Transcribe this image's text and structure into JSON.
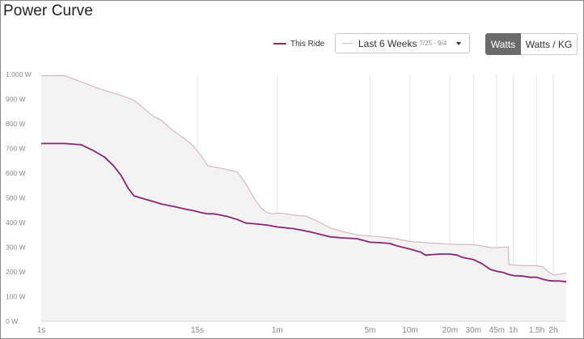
{
  "title": "Power Curve",
  "legend": {
    "ride_label": "This Ride"
  },
  "period_select": {
    "label": "Last 6 Weeks",
    "range": "7/25 - 9/4"
  },
  "units": {
    "watts": "Watts",
    "watts_per_kg": "Watts / KG",
    "selected": "Watts"
  },
  "colors": {
    "ride": "#8b2771",
    "period_line": "#d8b6c9",
    "period_fill": "#f3f3f3",
    "grid": "#e6e6e6",
    "axis_text": "#888888"
  },
  "chart_data": {
    "type": "line",
    "title": "Power Curve",
    "xlabel": "",
    "ylabel": "",
    "x_scale": "log",
    "x_unit": "seconds",
    "xlim": [
      1,
      9000
    ],
    "ylim": [
      0,
      1000
    ],
    "y_ticks": [
      {
        "value": 0,
        "label": "0 W"
      },
      {
        "value": 100,
        "label": "100 W"
      },
      {
        "value": 200,
        "label": "200 W"
      },
      {
        "value": 300,
        "label": "300 W"
      },
      {
        "value": 400,
        "label": "400 W"
      },
      {
        "value": 500,
        "label": "500 W"
      },
      {
        "value": 600,
        "label": "600 W"
      },
      {
        "value": 700,
        "label": "700 W"
      },
      {
        "value": 800,
        "label": "800 W"
      },
      {
        "value": 900,
        "label": "900 W"
      },
      {
        "value": 1000,
        "label": "1,000 W"
      }
    ],
    "x_ticks": [
      {
        "value": 1,
        "label": "1s"
      },
      {
        "value": 15,
        "label": "15s"
      },
      {
        "value": 60,
        "label": "1m"
      },
      {
        "value": 300,
        "label": "5m"
      },
      {
        "value": 600,
        "label": "10m"
      },
      {
        "value": 1200,
        "label": "20m"
      },
      {
        "value": 1800,
        "label": "30m"
      },
      {
        "value": 2700,
        "label": "45m"
      },
      {
        "value": 3600,
        "label": "1h"
      },
      {
        "value": 5400,
        "label": "1.5h"
      },
      {
        "value": 7200,
        "label": "2h"
      }
    ],
    "series": [
      {
        "name": "Last 6 Weeks",
        "style": "area",
        "points": [
          [
            1,
            995
          ],
          [
            1.5,
            995
          ],
          [
            2,
            970
          ],
          [
            2.5,
            950
          ],
          [
            3,
            935
          ],
          [
            4,
            915
          ],
          [
            5,
            895
          ],
          [
            6,
            860
          ],
          [
            7,
            830
          ],
          [
            8,
            815
          ],
          [
            9,
            790
          ],
          [
            10,
            770
          ],
          [
            12,
            740
          ],
          [
            14,
            710
          ],
          [
            16,
            670
          ],
          [
            18,
            630
          ],
          [
            20,
            625
          ],
          [
            25,
            615
          ],
          [
            30,
            605
          ],
          [
            35,
            555
          ],
          [
            40,
            500
          ],
          [
            45,
            460
          ],
          [
            50,
            440
          ],
          [
            55,
            435
          ],
          [
            60,
            438
          ],
          [
            70,
            435
          ],
          [
            80,
            430
          ],
          [
            100,
            425
          ],
          [
            120,
            405
          ],
          [
            150,
            378
          ],
          [
            180,
            365
          ],
          [
            240,
            350
          ],
          [
            300,
            345
          ],
          [
            360,
            342
          ],
          [
            420,
            338
          ],
          [
            480,
            333
          ],
          [
            600,
            323
          ],
          [
            720,
            320
          ],
          [
            900,
            316
          ],
          [
            1200,
            312
          ],
          [
            1500,
            311
          ],
          [
            1800,
            310
          ],
          [
            2100,
            305
          ],
          [
            2400,
            298
          ],
          [
            2700,
            298
          ],
          [
            3000,
            300
          ],
          [
            3300,
            300
          ],
          [
            3330,
            230
          ],
          [
            3600,
            228
          ],
          [
            4200,
            225
          ],
          [
            5400,
            225
          ],
          [
            6000,
            220
          ],
          [
            6600,
            200
          ],
          [
            7200,
            188
          ],
          [
            8000,
            190
          ],
          [
            9000,
            195
          ]
        ]
      },
      {
        "name": "This Ride",
        "style": "line",
        "points": [
          [
            1,
            720
          ],
          [
            1.5,
            720
          ],
          [
            2,
            715
          ],
          [
            2.5,
            690
          ],
          [
            3,
            665
          ],
          [
            3.5,
            630
          ],
          [
            4,
            590
          ],
          [
            4.5,
            540
          ],
          [
            5,
            508
          ],
          [
            6,
            495
          ],
          [
            7,
            485
          ],
          [
            8,
            475
          ],
          [
            10,
            465
          ],
          [
            12,
            455
          ],
          [
            14,
            448
          ],
          [
            16,
            440
          ],
          [
            18,
            435
          ],
          [
            20,
            435
          ],
          [
            25,
            425
          ],
          [
            30,
            412
          ],
          [
            35,
            397
          ],
          [
            40,
            395
          ],
          [
            50,
            390
          ],
          [
            60,
            382
          ],
          [
            80,
            375
          ],
          [
            100,
            365
          ],
          [
            120,
            355
          ],
          [
            150,
            342
          ],
          [
            180,
            338
          ],
          [
            240,
            334
          ],
          [
            300,
            320
          ],
          [
            360,
            318
          ],
          [
            420,
            315
          ],
          [
            480,
            305
          ],
          [
            600,
            292
          ],
          [
            720,
            280
          ],
          [
            780,
            268
          ],
          [
            900,
            270
          ],
          [
            1000,
            272
          ],
          [
            1200,
            272
          ],
          [
            1350,
            268
          ],
          [
            1500,
            258
          ],
          [
            1800,
            250
          ],
          [
            2100,
            232
          ],
          [
            2400,
            210
          ],
          [
            2700,
            202
          ],
          [
            3000,
            198
          ],
          [
            3300,
            190
          ],
          [
            3600,
            185
          ],
          [
            4200,
            183
          ],
          [
            4800,
            178
          ],
          [
            5400,
            178
          ],
          [
            6000,
            170
          ],
          [
            6600,
            165
          ],
          [
            7200,
            163
          ],
          [
            8000,
            163
          ],
          [
            9000,
            160
          ]
        ]
      }
    ]
  }
}
